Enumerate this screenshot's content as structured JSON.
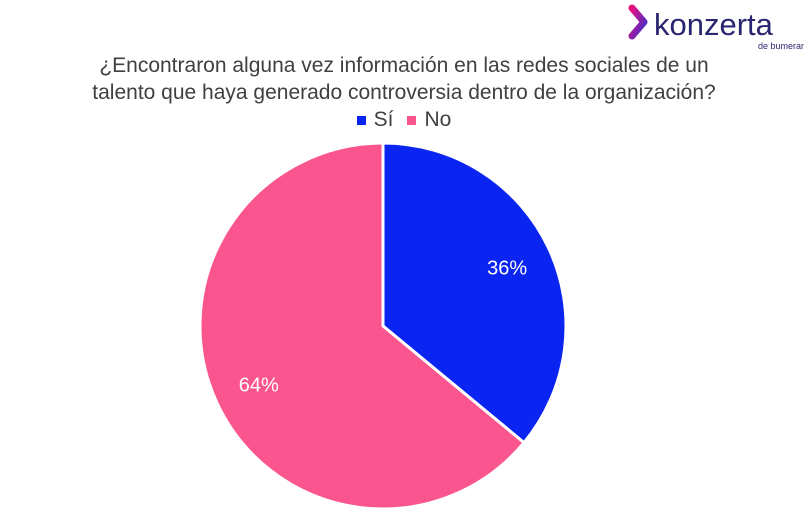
{
  "logo": {
    "brand": "konzerta",
    "tagline": "de bumeran",
    "accent": "#E8107C",
    "accent2": "#3A2FD0",
    "text_color": "#2A2570"
  },
  "chart_data": {
    "type": "pie",
    "title_lines": [
      "¿Encontraron alguna vez información en las redes sociales de un",
      "talento que haya generado controversia dentro de la organización?"
    ],
    "legend_position": "top",
    "categories": [
      "Sí",
      "No"
    ],
    "values": [
      36,
      64
    ],
    "labels": [
      "36%",
      "64%"
    ],
    "colors": [
      "#0A24F2",
      "#FB5590"
    ]
  }
}
